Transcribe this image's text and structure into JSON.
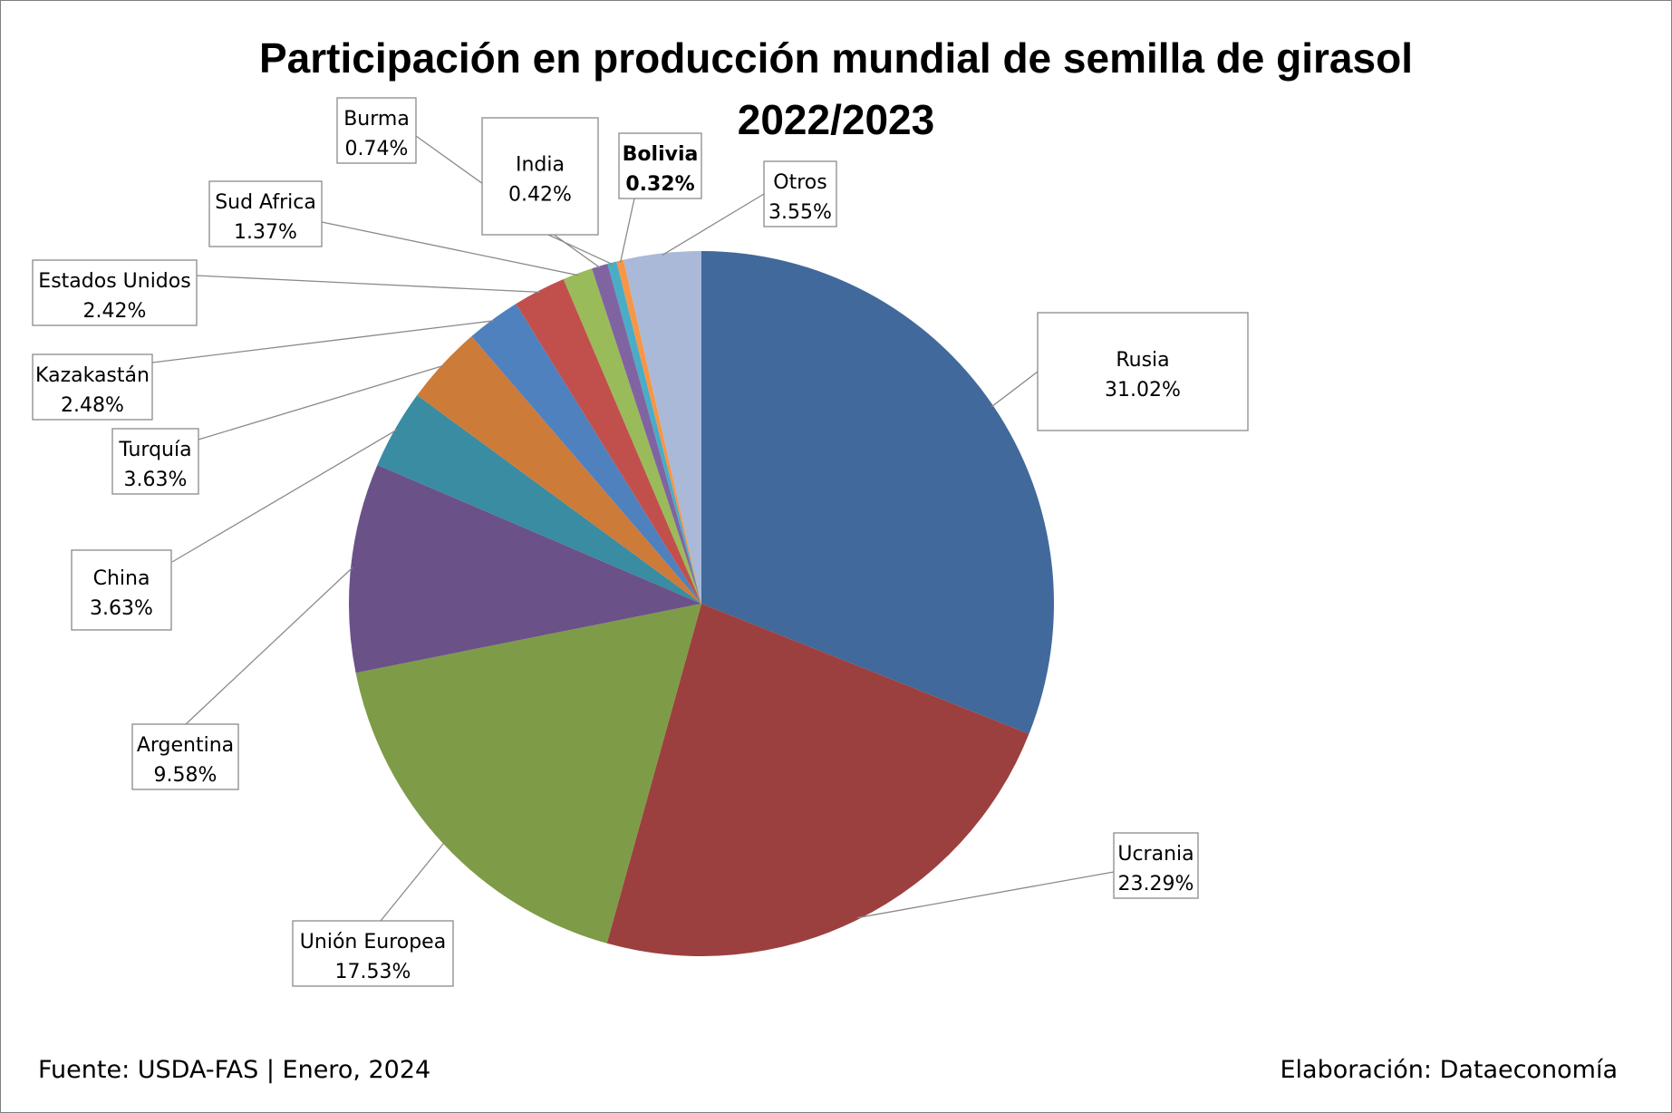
{
  "chart_data": {
    "type": "pie",
    "title": "Participación en producción mundial de semilla de girasol",
    "subtitle": "2022/2023",
    "slices": [
      {
        "label": "Rusia",
        "value": 31.02,
        "display": "31.02%",
        "color": "#41699B"
      },
      {
        "label": "Ucrania",
        "value": 23.29,
        "display": "23.29%",
        "color": "#9C403F"
      },
      {
        "label": "Unión Europea",
        "value": 17.53,
        "display": "17.53%",
        "color": "#7E9B48"
      },
      {
        "label": "Argentina",
        "value": 9.58,
        "display": "9.58%",
        "color": "#6A5288"
      },
      {
        "label": "China",
        "value": 3.63,
        "display": "3.63%",
        "color": "#398CA1"
      },
      {
        "label": "Turquía",
        "value": 3.63,
        "display": "3.63%",
        "color": "#CD7B39"
      },
      {
        "label": "Kazakastán",
        "value": 2.48,
        "display": "2.48%",
        "color": "#4E81BE"
      },
      {
        "label": "Estados Unidos",
        "value": 2.42,
        "display": "2.42%",
        "color": "#C1504D"
      },
      {
        "label": "Sud Africa",
        "value": 1.37,
        "display": "1.37%",
        "color": "#9ABB59"
      },
      {
        "label": "Burma",
        "value": 0.74,
        "display": "0.74%",
        "color": "#8064A2"
      },
      {
        "label": "India",
        "value": 0.42,
        "display": "0.42%",
        "color": "#4AACC6"
      },
      {
        "label": "Bolivia",
        "value": 0.32,
        "display": "0.32%",
        "color": "#F79646",
        "bold": true
      },
      {
        "label": "Otros",
        "value": 3.55,
        "display": "3.55%",
        "color": "#AAB9D7"
      }
    ]
  },
  "footer": {
    "source": "Fuente: USDA-FAS | Enero, 2024",
    "credit": "Elaboración: Dataeconomía"
  }
}
